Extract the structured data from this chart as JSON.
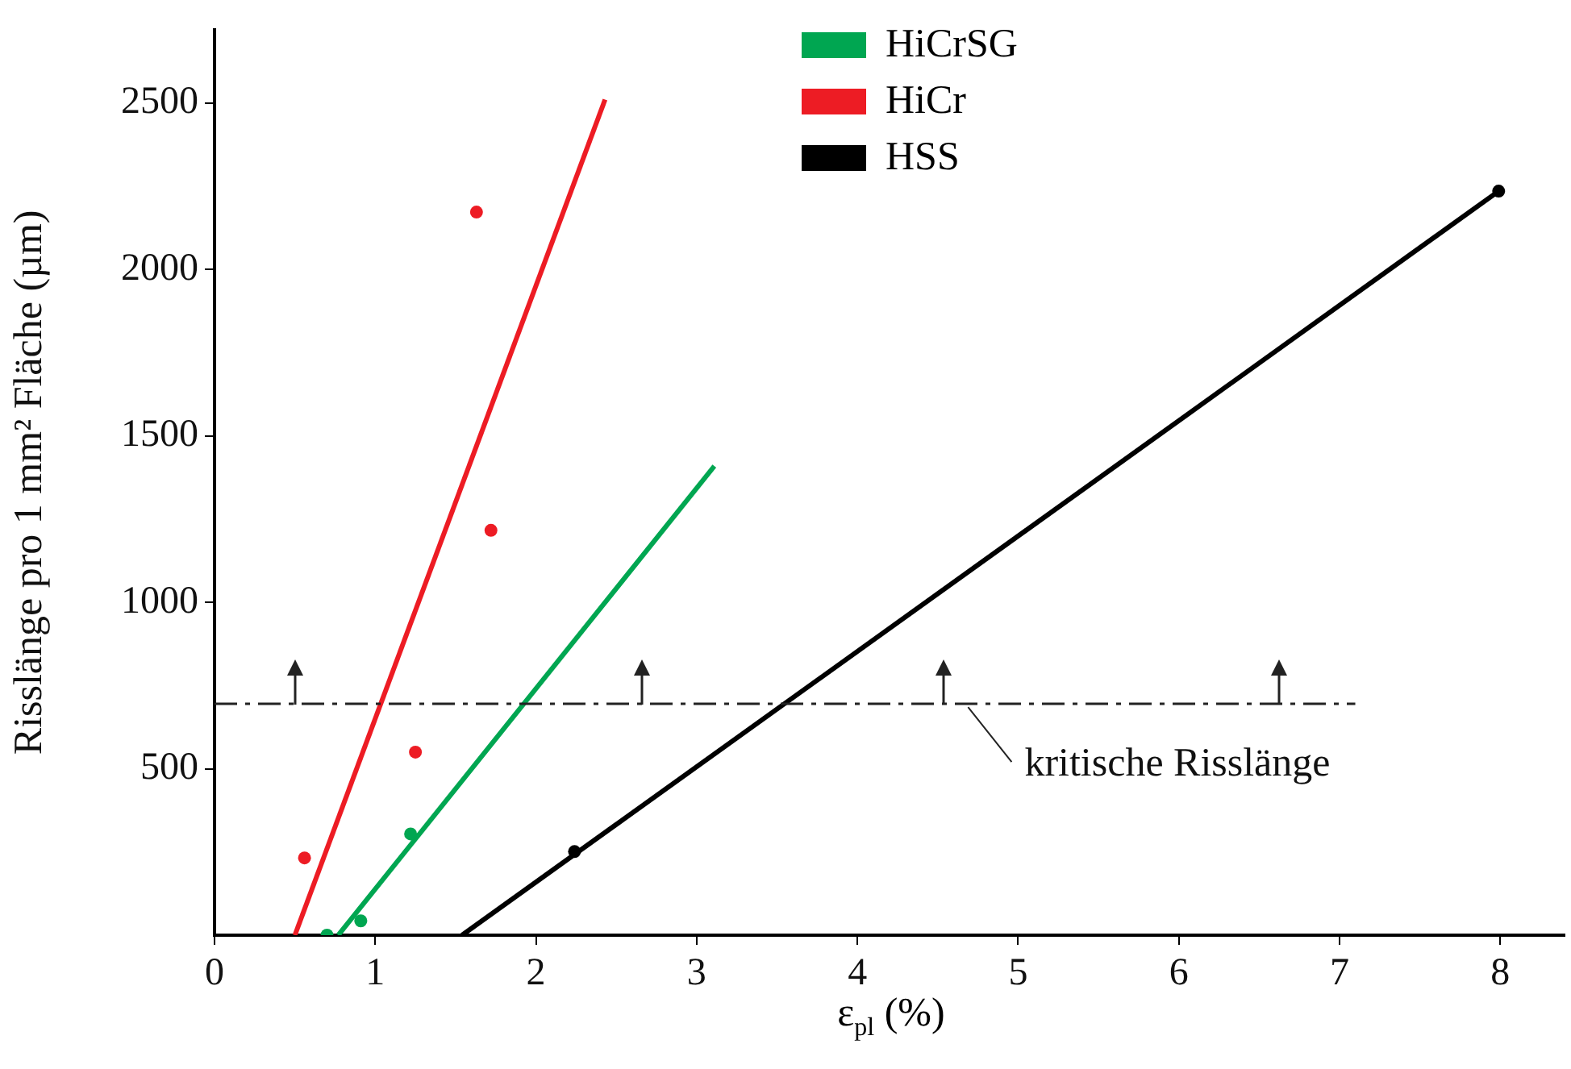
{
  "chart_data": {
    "type": "scatter",
    "xlabel": "ε$_{pl}$ (%)",
    "ylabel": "Risslänge pro 1 mm² Fläche (µm)",
    "xlim": [
      0,
      8.4
    ],
    "xticks": [
      0,
      1,
      2,
      3,
      4,
      5,
      6,
      7,
      8
    ],
    "ylim": [
      0,
      2720
    ],
    "yticks": [
      500,
      1000,
      1500,
      2000,
      2500
    ],
    "legend": "top",
    "series": [
      {
        "name": "HiCrSG",
        "type": "line",
        "color": "#00a651",
        "x": [
          0.77,
          3.11
        ],
        "values": [
          0,
          1409
        ],
        "marker": "none"
      },
      {
        "name": "HiCr",
        "type": "line",
        "color": "#ed1c24",
        "x": [
          0.5,
          2.43
        ],
        "values": [
          0,
          2510
        ],
        "marker": "none"
      },
      {
        "name": "HSS",
        "type": "line",
        "color": "#000000",
        "x": [
          1.54,
          7.99
        ],
        "values": [
          0,
          2235
        ],
        "marker": "none"
      },
      {
        "color": "#00a651",
        "x": [
          0.7,
          0.91,
          1.22
        ],
        "values": [
          0,
          43,
          304
        ],
        "marker": "circle"
      },
      {
        "color": "#ed1c24",
        "x": [
          0.56,
          1.25,
          1.63,
          1.72
        ],
        "values": [
          232,
          550,
          2172,
          1216
        ],
        "marker": "circle"
      },
      {
        "color": "#000000",
        "x": [
          2.24,
          7.99
        ],
        "values": [
          251,
          2235
        ],
        "marker": "circle"
      }
    ],
    "ref_lines": [
      {
        "axis": "y",
        "value": 695,
        "label": "kritische Risslänge",
        "color": "#222222",
        "line_style": "dashed"
      }
    ]
  }
}
